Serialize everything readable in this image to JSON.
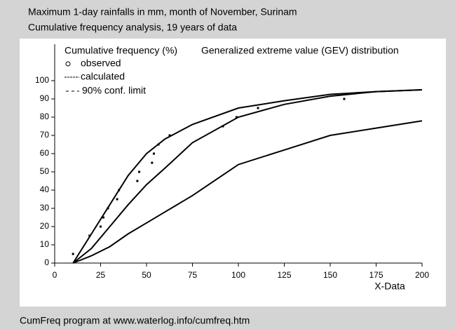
{
  "chart_data": {
    "type": "line",
    "title": "Maximum 1-day rainfalls in mm, month of November, Surinam",
    "subtitle": "Cumulative frequency analysis, 19 years of data",
    "ylabel": "Cumulative frequency (%)",
    "annotation": "Generalized extreme value (GEV) distribution",
    "xlabel": "X-Data",
    "footer": "CumFreq program at www.waterlog.info/cumfreq.htm",
    "xlim": [
      0,
      200
    ],
    "ylim": [
      0,
      120
    ],
    "xticks": [
      0,
      25,
      50,
      75,
      100,
      125,
      150,
      175,
      200
    ],
    "yticks": [
      0,
      10,
      20,
      30,
      40,
      50,
      60,
      70,
      80,
      90,
      100
    ],
    "observed": {
      "name": "observed",
      "x": [
        10,
        19,
        25,
        26.5,
        29,
        34,
        35,
        45,
        46,
        53,
        54,
        56.5,
        62.6,
        91.6,
        99,
        110.7,
        157.6
      ],
      "values": [
        5,
        15,
        20,
        25,
        30,
        35,
        40,
        45,
        50,
        55,
        60,
        65,
        70,
        75,
        80,
        85,
        90
      ]
    },
    "x": [
      10,
      20,
      30,
      40,
      50,
      60,
      75,
      100,
      125,
      150,
      175,
      200
    ],
    "calculated": {
      "name": "calculated",
      "values": [
        0,
        8,
        20,
        32,
        43,
        52,
        66,
        80,
        87,
        91.5,
        94,
        95
      ]
    },
    "confidence": {
      "name": "90% conf. limit",
      "upper": [
        0,
        16,
        32,
        48,
        60,
        68,
        76,
        85,
        89,
        92.5,
        94,
        95
      ],
      "lower": [
        0,
        4,
        9,
        16,
        22,
        28,
        37,
        54,
        62,
        70,
        74,
        78
      ]
    },
    "color": "#000000"
  }
}
